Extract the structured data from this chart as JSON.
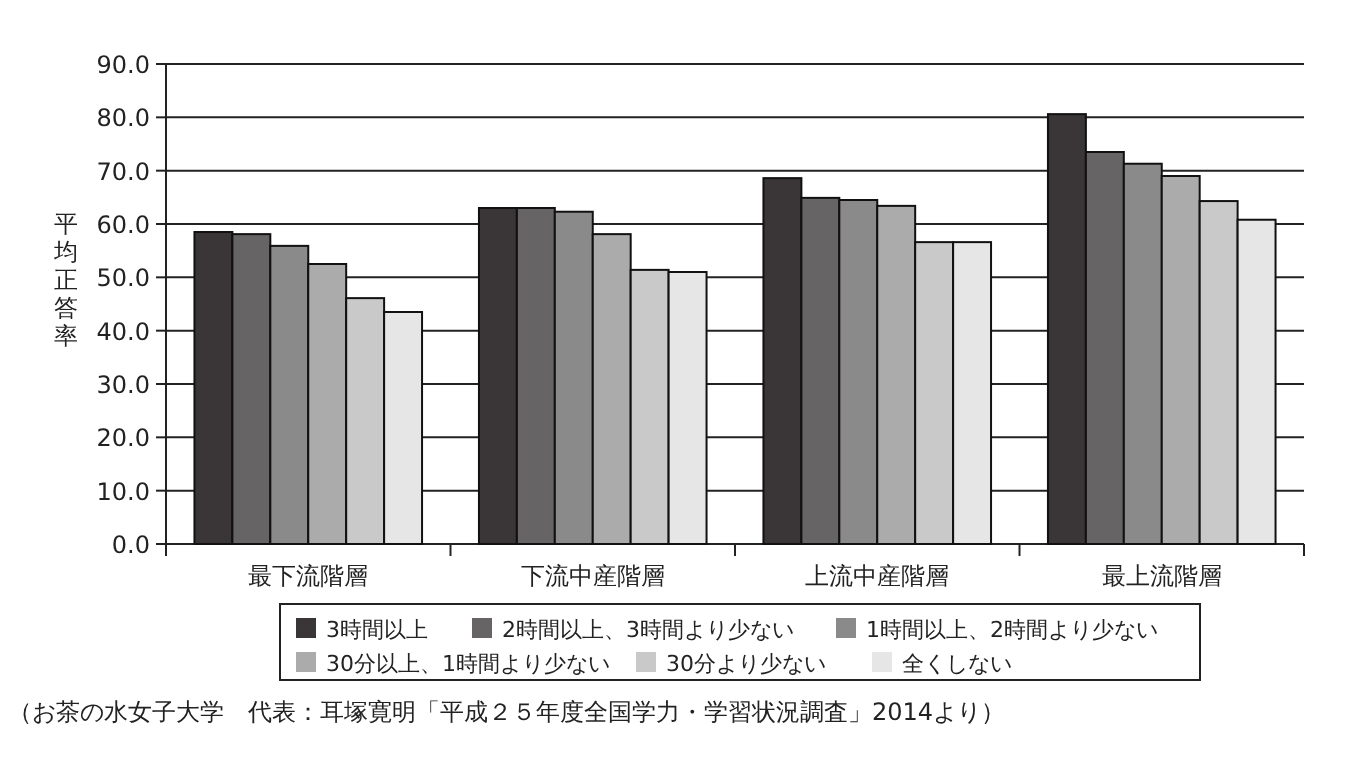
{
  "chart_data": {
    "type": "bar",
    "ylabel": "平均正答率",
    "categories": [
      "最下流階層",
      "下流中産階層",
      "上流中産階層",
      "最上流階層"
    ],
    "series": [
      {
        "name": "3時間以上",
        "color": "#3a3536",
        "values": [
          58.5,
          63.0,
          68.6,
          80.6
        ]
      },
      {
        "name": "2時間以上、3時間より少ない",
        "color": "#666464",
        "values": [
          58.1,
          63.0,
          64.9,
          73.5
        ]
      },
      {
        "name": "1時間以上、2時間より少ない",
        "color": "#8a8a8a",
        "values": [
          55.9,
          62.3,
          64.5,
          71.3
        ]
      },
      {
        "name": "30分以上、1時間より少ない",
        "color": "#ababab",
        "values": [
          52.5,
          58.1,
          63.4,
          69.0
        ]
      },
      {
        "name": "30分より少ない",
        "color": "#c9c9c9",
        "values": [
          46.1,
          51.4,
          56.6,
          64.3
        ]
      },
      {
        "name": "全くしない",
        "color": "#e6e6e6",
        "values": [
          43.5,
          51.0,
          56.6,
          60.8
        ]
      }
    ],
    "ylim": [
      0,
      90
    ],
    "yticks": [
      {
        "value": 0,
        "label": "0.0"
      },
      {
        "value": 10,
        "label": "10.0"
      },
      {
        "value": 20,
        "label": "20.0"
      },
      {
        "value": 30,
        "label": "30.0"
      },
      {
        "value": 40,
        "label": "40.0"
      },
      {
        "value": 50,
        "label": "50.0"
      },
      {
        "value": 60,
        "label": "60.0"
      },
      {
        "value": 70,
        "label": "70.0"
      },
      {
        "value": 80,
        "label": "80.0"
      },
      {
        "value": 90,
        "label": "90.0"
      }
    ],
    "grid": "y",
    "legend": "bottom",
    "annotations": [
      "（お茶の水女子大学　代表：耳塚寛明「平成２５年度全国学力・学習状況調査」2014より）"
    ]
  }
}
